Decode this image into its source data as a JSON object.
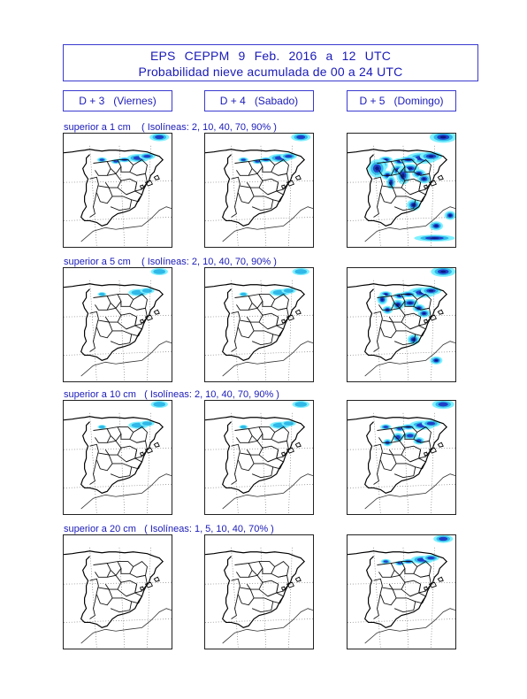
{
  "header": {
    "line1": "EPS   CEPPM    9 Feb. 2016   a    12 UTC",
    "line2": "Probabilidad nieve acumulada de 00 a 24 UTC"
  },
  "days": [
    {
      "label": "D + 3   (Viernes)"
    },
    {
      "label": "D + 4   (Sabado)"
    },
    {
      "label": "D + 5   (Domingo)"
    }
  ],
  "rows": [
    {
      "label": "superior a 1 cm    ( Isolíneas: 2, 10, 40, 70, 90% )"
    },
    {
      "label": "superior a 5 cm    ( Isolíneas: 2, 10, 40, 70, 90% )"
    },
    {
      "label": "superior a 10 cm   ( Isolíneas: 2, 10, 40, 70, 90% )"
    },
    {
      "label": "superior a 20 cm   ( Isolíneas: 1, 5, 10, 40, 70% )"
    }
  ],
  "colors": {
    "text": "#1a1ab8",
    "low_prob": "#7ff0ff",
    "mid_prob": "#2fb8e8",
    "high_prob": "#1f3fc8",
    "very_high_prob": "#0a1a80"
  },
  "intensity": [
    [
      2,
      2,
      5
    ],
    [
      1,
      1,
      4
    ],
    [
      1,
      1,
      3
    ],
    [
      0,
      0,
      2
    ]
  ]
}
